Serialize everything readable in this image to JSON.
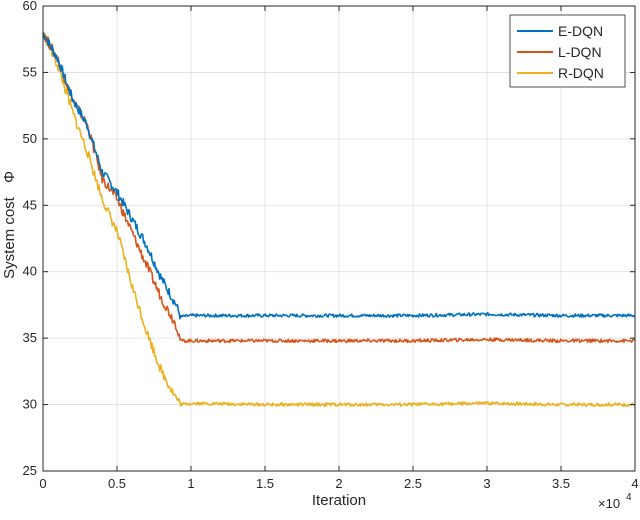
{
  "chart_data": {
    "type": "line",
    "xlabel": "Iteration",
    "ylabel": "System cost",
    "ylabel_symbol": "Φ",
    "x_multiplier_label": "×10",
    "x_multiplier_exp": "4",
    "xlim": [
      0,
      4
    ],
    "ylim": [
      25,
      60
    ],
    "x_ticks": [
      0,
      0.5,
      1,
      1.5,
      2,
      2.5,
      3,
      3.5,
      4
    ],
    "x_tick_labels": [
      "0",
      "0.5",
      "1",
      "1.5",
      "2",
      "2.5",
      "3",
      "3.5",
      "4"
    ],
    "y_ticks": [
      25,
      30,
      35,
      40,
      45,
      50,
      55,
      60
    ],
    "y_tick_labels": [
      "25",
      "30",
      "35",
      "40",
      "45",
      "50",
      "55",
      "60"
    ],
    "grid": true,
    "legend_position": "top-right",
    "series": [
      {
        "name": "E-DQN",
        "color": "#0072BD",
        "x": [
          0,
          0.1,
          0.2,
          0.3,
          0.4,
          0.5,
          0.6,
          0.7,
          0.8,
          0.9,
          0.93,
          1.0,
          1.5,
          2.0,
          2.5,
          3.0,
          3.5,
          4.0
        ],
        "y": [
          58,
          56,
          53,
          51,
          47.5,
          46,
          44,
          42,
          39.5,
          37.5,
          36.6,
          36.7,
          36.7,
          36.7,
          36.7,
          36.8,
          36.7,
          36.7
        ]
      },
      {
        "name": "L-DQN",
        "color": "#D95319",
        "x": [
          0,
          0.1,
          0.2,
          0.3,
          0.4,
          0.5,
          0.6,
          0.7,
          0.8,
          0.9,
          0.93,
          1.0,
          1.5,
          2.0,
          2.5,
          3.0,
          3.5,
          4.0
        ],
        "y": [
          58,
          56,
          53,
          51,
          47,
          45.5,
          43,
          40.5,
          38,
          36,
          34.8,
          34.8,
          34.8,
          34.8,
          34.8,
          34.9,
          34.8,
          34.8
        ]
      },
      {
        "name": "R-DQN",
        "color": "#EDB120",
        "x": [
          0,
          0.1,
          0.2,
          0.3,
          0.4,
          0.5,
          0.6,
          0.7,
          0.8,
          0.9,
          0.93,
          1.0,
          1.5,
          2.0,
          2.5,
          3.0,
          3.5,
          4.0
        ],
        "y": [
          58,
          55.5,
          52,
          49,
          45.5,
          43,
          39,
          35.5,
          32.5,
          30.5,
          30,
          30.1,
          30,
          30,
          30,
          30.1,
          30,
          30
        ]
      }
    ]
  }
}
